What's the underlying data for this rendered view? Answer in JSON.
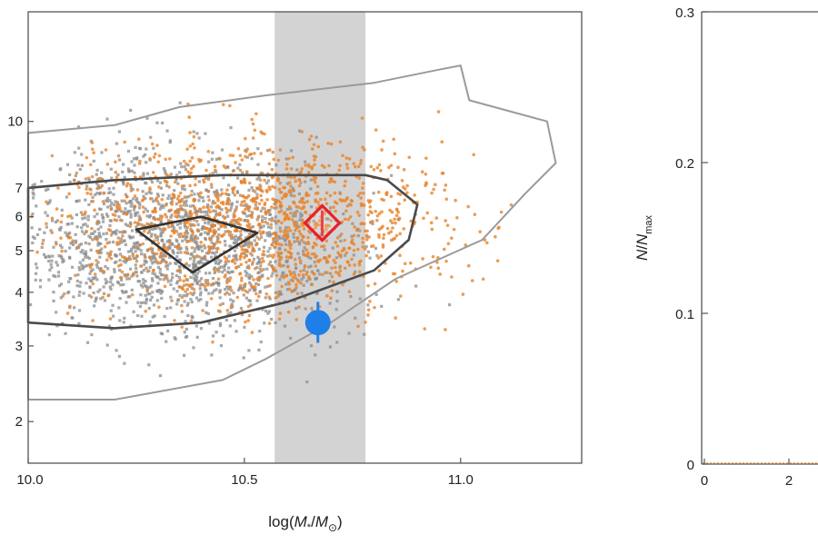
{
  "chart_data": [
    {
      "type": "scatter",
      "title": "",
      "xlabel_parts": {
        "pre": "log(",
        "m": "M",
        "star": "*",
        "slash": "/",
        "m2": "M",
        "sun": "⊙",
        "post": ")"
      },
      "ylabel": "",
      "xlim": [
        10.0,
        11.28
      ],
      "ylim": [
        1.6,
        18.0
      ],
      "y_scale": "log",
      "grid": false,
      "x_ticks": [
        {
          "value": 10.0,
          "label": "10.0"
        },
        {
          "value": 10.5,
          "label": "10.5"
        },
        {
          "value": 11.0,
          "label": "11.0"
        }
      ],
      "y_ticks": [
        {
          "value": 2,
          "label": "2"
        },
        {
          "value": 3,
          "label": "3"
        },
        {
          "value": 4,
          "label": "4"
        },
        {
          "value": 5,
          "label": "5"
        },
        {
          "value": 6,
          "label": "6"
        },
        {
          "value": 7,
          "label": "7"
        },
        {
          "value": 10,
          "label": "10"
        }
      ],
      "shaded_band": {
        "x_range": [
          10.57,
          10.78
        ],
        "color": "#d3d3d3"
      },
      "background_points": [
        {
          "name": "",
          "color": "#8c8c8c",
          "marker": "square",
          "x_center": 10.35,
          "x_spread": 0.28,
          "y_center": 5.2,
          "y_spread": 0.32
        },
        {
          "name": "",
          "color": "#e8832a",
          "marker": "circle",
          "x_center": 10.55,
          "x_spread": 0.3,
          "y_center": 5.8,
          "y_spread": 0.32
        }
      ],
      "contours": [
        {
          "level": "outer",
          "color": "#9a9a9a",
          "points": [
            [
              10.0,
              9.4
            ],
            [
              10.2,
              9.8
            ],
            [
              10.35,
              10.8
            ],
            [
              10.55,
              11.5
            ],
            [
              10.8,
              12.3
            ],
            [
              10.95,
              13.2
            ],
            [
              11.0,
              13.5
            ],
            [
              11.02,
              11.2
            ],
            [
              11.2,
              10.0
            ],
            [
              11.22,
              8.0
            ],
            [
              11.15,
              6.8
            ],
            [
              11.05,
              5.3
            ],
            [
              10.85,
              4.3
            ],
            [
              10.7,
              3.4
            ],
            [
              10.55,
              2.8
            ],
            [
              10.45,
              2.5
            ],
            [
              10.2,
              2.25
            ],
            [
              10.0,
              2.25
            ]
          ]
        },
        {
          "level": "middle",
          "color": "#4a4a4a",
          "points": [
            [
              10.0,
              7.0
            ],
            [
              10.2,
              7.3
            ],
            [
              10.45,
              7.5
            ],
            [
              10.78,
              7.5
            ],
            [
              10.83,
              7.3
            ],
            [
              10.9,
              6.4
            ],
            [
              10.88,
              5.3
            ],
            [
              10.8,
              4.5
            ],
            [
              10.6,
              3.8
            ],
            [
              10.4,
              3.4
            ],
            [
              10.2,
              3.3
            ],
            [
              10.0,
              3.4
            ]
          ]
        },
        {
          "level": "inner",
          "color": "#333333",
          "points": [
            [
              10.25,
              5.6
            ],
            [
              10.4,
              6.0
            ],
            [
              10.53,
              5.5
            ],
            [
              10.38,
              4.45
            ]
          ]
        }
      ],
      "highlight_points": [
        {
          "name": "",
          "marker": "diamond-open",
          "color": "#e8202a",
          "x": 10.68,
          "y": 5.8,
          "y_err": [
            5.4,
            6.2
          ]
        },
        {
          "name": "",
          "marker": "circle-filled",
          "color": "#1f7fe8",
          "x": 10.67,
          "y": 3.4,
          "y_err": [
            3.05,
            3.8
          ]
        }
      ]
    },
    {
      "type": "histogram",
      "title": "",
      "xlabel": "",
      "ylabel_parts": {
        "n": "N",
        "slash": "/",
        "n2": "N",
        "sub": "max"
      },
      "ylim": [
        0,
        0.3
      ],
      "x_ticks": [
        {
          "value": 0,
          "label": "0"
        },
        {
          "value": 2,
          "label": "2"
        }
      ],
      "y_ticks": [
        {
          "value": 0,
          "label": "0"
        },
        {
          "value": 0.1,
          "label": "0.1"
        },
        {
          "value": 0.2,
          "label": "0.2"
        },
        {
          "value": 0.3,
          "label": "0.3"
        }
      ],
      "baseline_color": "#e8832a"
    }
  ]
}
